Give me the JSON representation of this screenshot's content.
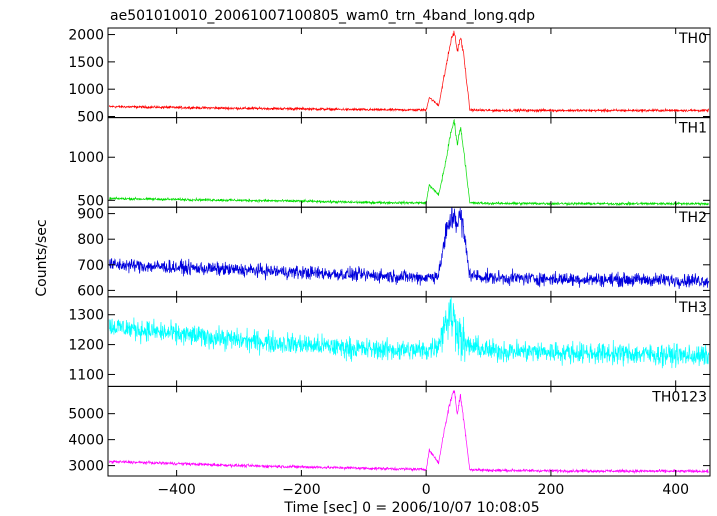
{
  "chart_data": {
    "type": "line",
    "title": "ae501010010_20061007100805_wam0_trn_4band_long.qdp",
    "xlabel": "Time [sec] 0 = 2006/10/07 10:08:05",
    "ylabel": "Counts/sec",
    "xlim": [
      -510,
      455
    ],
    "xticks": [
      -400,
      -200,
      0,
      200,
      400
    ],
    "xtick_labels": [
      "−400",
      "−200",
      "0",
      "200",
      "400"
    ],
    "panels": [
      {
        "name": "TH0",
        "color": "#ff0000",
        "ylim": [
          480,
          2120
        ],
        "yticks": [
          500,
          1000,
          1500,
          2000
        ],
        "profile": {
          "base_start": 680,
          "base_end": 610,
          "noise": 22,
          "precursor_peak": 850,
          "burst_peak": 2050
        },
        "series": [
          {
            "x": [
              -500,
              -400,
              -300,
              -200,
              -100,
              0,
              5,
              20,
              30,
              40,
              45,
              50,
              55,
              60,
              70,
              100,
              200,
              300,
              400,
              450
            ],
            "y": [
              680,
              665,
              650,
              640,
              625,
              620,
              850,
              700,
              1300,
              1900,
              2050,
              1700,
              1950,
              1650,
              620,
              612,
              612,
              610,
              612,
              610
            ]
          }
        ]
      },
      {
        "name": "TH1",
        "color": "#00dd00",
        "ylim": [
          420,
          1460
        ],
        "yticks": [
          500,
          1000
        ],
        "profile": {
          "base_start": 520,
          "base_end": 460,
          "noise": 14,
          "precursor_peak": 680,
          "burst_peak": 1420
        },
        "series": [
          {
            "x": [
              -500,
              -400,
              -300,
              -200,
              -100,
              0,
              5,
              20,
              30,
              40,
              45,
              50,
              55,
              60,
              70,
              100,
              200,
              300,
              400,
              450
            ],
            "y": [
              520,
              510,
              500,
              490,
              475,
              470,
              680,
              560,
              900,
              1300,
              1420,
              1150,
              1350,
              1100,
              470,
              465,
              462,
              460,
              462,
              460
            ]
          }
        ]
      },
      {
        "name": "TH2",
        "color": "#0000dd",
        "ylim": [
          575,
          925
        ],
        "yticks": [
          600,
          700,
          800,
          900
        ],
        "profile": {
          "base_start": 700,
          "base_end": 640,
          "noise": 26,
          "precursor_peak": 650,
          "burst_peak": 900
        },
        "series": [
          {
            "x": [
              -500,
              -400,
              -300,
              -200,
              -100,
              0,
              20,
              30,
              40,
              45,
              50,
              55,
              60,
              70,
              100,
              200,
              300,
              400,
              450
            ],
            "y": [
              700,
              690,
              680,
              670,
              660,
              650,
              660,
              800,
              880,
              900,
              860,
              890,
              830,
              660,
              650,
              645,
              642,
              640,
              638
            ]
          }
        ]
      },
      {
        "name": "TH3",
        "color": "#00ffff",
        "ylim": [
          1060,
          1360
        ],
        "yticks": [
          1100,
          1200,
          1300
        ],
        "profile": {
          "base_start": 1260,
          "base_end": 1160,
          "noise": 35,
          "precursor_peak": 1200,
          "burst_peak": 1300
        },
        "series": [
          {
            "x": [
              -500,
              -400,
              -300,
              -200,
              -100,
              0,
              20,
              30,
              40,
              50,
              60,
              100,
              200,
              300,
              400,
              450
            ],
            "y": [
              1260,
              1235,
              1215,
              1200,
              1185,
              1180,
              1200,
              1280,
              1300,
              1260,
              1200,
              1180,
              1175,
              1170,
              1165,
              1160
            ]
          }
        ]
      },
      {
        "name": "TH0123",
        "color": "#ff00ff",
        "ylim": [
          2600,
          6050
        ],
        "yticks": [
          3000,
          4000,
          5000
        ],
        "profile": {
          "base_start": 3150,
          "base_end": 2780,
          "noise": 55,
          "precursor_peak": 3600,
          "burst_peak": 5900
        },
        "series": [
          {
            "x": [
              -500,
              -400,
              -300,
              -200,
              -100,
              0,
              5,
              20,
              30,
              40,
              45,
              50,
              55,
              60,
              70,
              100,
              200,
              300,
              400,
              450
            ],
            "y": [
              3150,
              3080,
              3000,
              2950,
              2900,
              2850,
              3600,
              3100,
              4500,
              5600,
              5900,
              5000,
              5700,
              4800,
              2850,
              2820,
              2800,
              2790,
              2785,
              2780
            ]
          }
        ]
      }
    ]
  }
}
